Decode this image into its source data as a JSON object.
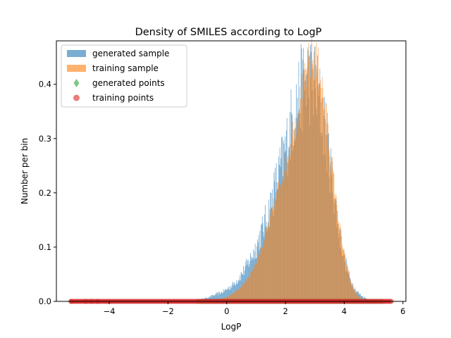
{
  "chart_data": {
    "type": "histogram",
    "title": "Density of SMILES according to LogP",
    "xlabel": "LogP",
    "ylabel": "Number per bin",
    "xlim": [
      -5.8,
      6.1
    ],
    "ylim": [
      0,
      0.48
    ],
    "xticks": [
      -4,
      -2,
      0,
      2,
      4,
      6
    ],
    "xtick_labels": [
      "−4",
      "−2",
      "0",
      "2",
      "4",
      "6"
    ],
    "yticks": [
      0.0,
      0.1,
      0.2,
      0.3,
      0.4
    ],
    "ytick_labels": [
      "0.0",
      "0.1",
      "0.2",
      "0.3",
      "0.4"
    ],
    "grid": false,
    "legend_position": "upper-left",
    "series": [
      {
        "name": "generated sample",
        "kind": "histogram",
        "color": "#1f77b4",
        "opacity": 0.6,
        "bin_width": 0.02,
        "bins": [
          [
            -1.0,
            0.002
          ],
          [
            -0.8,
            0.005
          ],
          [
            -0.6,
            0.008
          ],
          [
            -0.4,
            0.012
          ],
          [
            -0.2,
            0.016
          ],
          [
            0.0,
            0.022
          ],
          [
            0.2,
            0.03
          ],
          [
            0.4,
            0.042
          ],
          [
            0.6,
            0.058
          ],
          [
            0.8,
            0.078
          ],
          [
            1.0,
            0.1
          ],
          [
            1.2,
            0.13
          ],
          [
            1.4,
            0.16
          ],
          [
            1.6,
            0.2
          ],
          [
            1.8,
            0.24
          ],
          [
            2.0,
            0.28
          ],
          [
            2.2,
            0.33
          ],
          [
            2.4,
            0.37
          ],
          [
            2.6,
            0.4
          ],
          [
            2.8,
            0.41
          ],
          [
            3.0,
            0.4
          ],
          [
            3.2,
            0.36
          ],
          [
            3.4,
            0.3
          ],
          [
            3.6,
            0.22
          ],
          [
            3.8,
            0.14
          ],
          [
            4.0,
            0.08
          ],
          [
            4.2,
            0.04
          ],
          [
            4.4,
            0.02
          ],
          [
            4.6,
            0.01
          ],
          [
            4.8,
            0.004
          ],
          [
            5.0,
            0.001
          ]
        ]
      },
      {
        "name": "training sample",
        "kind": "histogram",
        "color": "#ff7f0e",
        "opacity": 0.6,
        "bin_width": 0.02,
        "bins": [
          [
            -1.0,
            0.0
          ],
          [
            -0.6,
            0.002
          ],
          [
            -0.2,
            0.005
          ],
          [
            0.0,
            0.008
          ],
          [
            0.2,
            0.014
          ],
          [
            0.4,
            0.022
          ],
          [
            0.6,
            0.034
          ],
          [
            0.8,
            0.05
          ],
          [
            1.0,
            0.072
          ],
          [
            1.2,
            0.1
          ],
          [
            1.4,
            0.135
          ],
          [
            1.6,
            0.175
          ],
          [
            1.8,
            0.215
          ],
          [
            2.0,
            0.255
          ],
          [
            2.2,
            0.3
          ],
          [
            2.4,
            0.345
          ],
          [
            2.6,
            0.39
          ],
          [
            2.8,
            0.44
          ],
          [
            3.0,
            0.45
          ],
          [
            3.2,
            0.41
          ],
          [
            3.4,
            0.33
          ],
          [
            3.6,
            0.24
          ],
          [
            3.8,
            0.15
          ],
          [
            4.0,
            0.085
          ],
          [
            4.2,
            0.04
          ],
          [
            4.4,
            0.015
          ],
          [
            4.6,
            0.004
          ],
          [
            4.8,
            0.0
          ]
        ]
      },
      {
        "name": "generated points",
        "kind": "scatter",
        "marker": "diamond",
        "color": "#2ca02c",
        "opacity": 0.6,
        "y": 0,
        "x_range": [
          -1.0,
          5.3
        ]
      },
      {
        "name": "training points",
        "kind": "scatter",
        "marker": "circle",
        "color": "#d62728",
        "opacity": 0.6,
        "y": 0,
        "x_range": [
          -5.3,
          5.6
        ],
        "outliers_x": [
          -5.3,
          -4.8,
          -4.6,
          -4.4
        ]
      }
    ]
  }
}
